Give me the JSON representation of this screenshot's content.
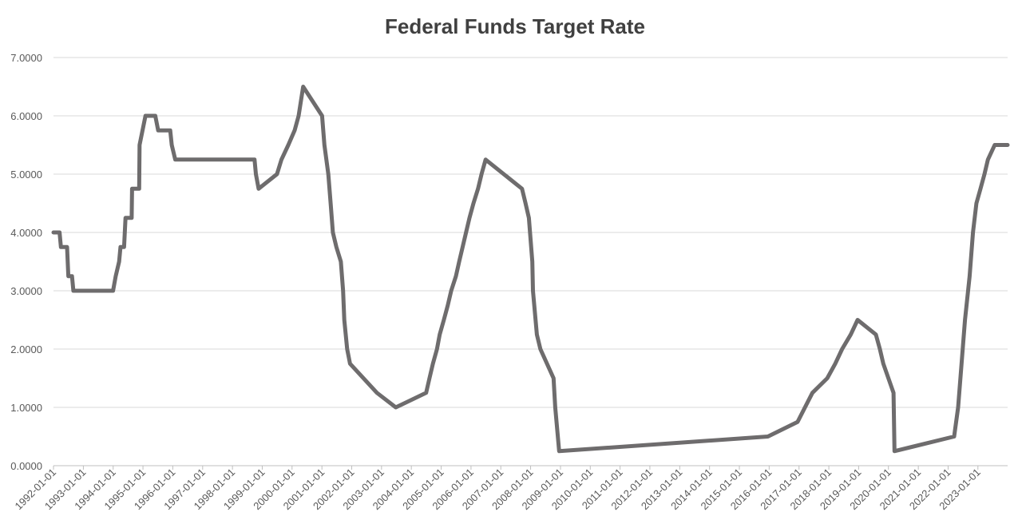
{
  "chart_data": {
    "type": "line",
    "title": "Federal Funds Target Rate",
    "xlabel": "",
    "ylabel": "",
    "ylim": [
      0,
      7
    ],
    "yticks": [
      "0.0000",
      "1.0000",
      "2.0000",
      "3.0000",
      "4.0000",
      "5.0000",
      "6.0000",
      "7.0000"
    ],
    "xticks": [
      "1992-01-01",
      "1993-01-01",
      "1994-01-01",
      "1995-01-01",
      "1996-01-01",
      "1997-01-01",
      "1998-01-01",
      "1999-01-01",
      "2000-01-01",
      "2001-01-01",
      "2002-01-01",
      "2003-01-01",
      "2004-01-01",
      "2005-01-01",
      "2006-01-01",
      "2007-01-01",
      "2008-01-01",
      "2009-01-01",
      "2010-01-01",
      "2011-01-01",
      "2012-01-01",
      "2013-01-01",
      "2014-01-01",
      "2015-01-01",
      "2016-01-01",
      "2017-01-01",
      "2018-01-01",
      "2019-01-01",
      "2020-01-01",
      "2021-01-01",
      "2022-01-01",
      "2023-01-01"
    ],
    "grid": true,
    "legend": "none",
    "series": [
      {
        "color": "#6e6c6d",
        "x": [
          "1992-01-01",
          "1992-03-15",
          "1992-04-01",
          "1992-06-15",
          "1992-07-01",
          "1992-08-15",
          "1992-09-01",
          "1993-12-31",
          "1994-02-01",
          "1994-03-15",
          "1994-04-01",
          "1994-05-15",
          "1994-06-01",
          "1994-08-15",
          "1994-08-20",
          "1994-11-15",
          "1994-11-20",
          "1995-02-01",
          "1995-06-01",
          "1995-07-06",
          "1995-12-01",
          "1995-12-19",
          "1996-01-31",
          "1998-09-29",
          "1998-10-15",
          "1998-11-17",
          "1999-06-30",
          "1999-08-24",
          "1999-11-16",
          "2000-02-02",
          "2000-03-21",
          "2000-05-16",
          "2001-01-03",
          "2001-01-31",
          "2001-03-20",
          "2001-04-18",
          "2001-05-15",
          "2001-06-27",
          "2001-08-21",
          "2001-09-17",
          "2001-10-02",
          "2001-11-06",
          "2001-12-11",
          "2002-11-06",
          "2003-06-25",
          "2004-06-30",
          "2004-08-10",
          "2004-09-21",
          "2004-11-10",
          "2004-12-14",
          "2005-02-02",
          "2005-03-22",
          "2005-05-03",
          "2005-06-30",
          "2005-08-09",
          "2005-09-20",
          "2005-11-01",
          "2005-12-13",
          "2006-01-31",
          "2006-03-28",
          "2006-05-10",
          "2006-06-29",
          "2007-09-18",
          "2007-10-31",
          "2007-12-11",
          "2008-01-22",
          "2008-01-30",
          "2008-03-18",
          "2008-04-30",
          "2008-10-08",
          "2008-10-29",
          "2008-12-16",
          "2015-12-16",
          "2016-12-14",
          "2017-03-15",
          "2017-06-14",
          "2017-12-13",
          "2018-03-21",
          "2018-06-13",
          "2018-09-26",
          "2018-12-19",
          "2019-07-31",
          "2019-09-18",
          "2019-10-30",
          "2020-03-03",
          "2020-03-15",
          "2022-03-16",
          "2022-05-04",
          "2022-06-15",
          "2022-07-27",
          "2022-09-21",
          "2022-11-02",
          "2022-12-14",
          "2023-02-01",
          "2023-03-22",
          "2023-05-03",
          "2023-07-26",
          "2023-12-31"
        ],
        "values": [
          4.0,
          4.0,
          3.75,
          3.75,
          3.25,
          3.25,
          3.0,
          3.0,
          3.25,
          3.5,
          3.75,
          3.75,
          4.25,
          4.25,
          4.75,
          4.75,
          5.5,
          6.0,
          6.0,
          5.75,
          5.75,
          5.5,
          5.25,
          5.25,
          5.0,
          4.75,
          5.0,
          5.25,
          5.5,
          5.75,
          6.0,
          6.5,
          6.0,
          5.5,
          5.0,
          4.5,
          4.0,
          3.75,
          3.5,
          3.0,
          2.5,
          2.0,
          1.75,
          1.25,
          1.0,
          1.25,
          1.5,
          1.75,
          2.0,
          2.25,
          2.5,
          2.75,
          3.0,
          3.25,
          3.5,
          3.75,
          4.0,
          4.25,
          4.5,
          4.75,
          5.0,
          5.25,
          4.75,
          4.5,
          4.25,
          3.5,
          3.0,
          2.25,
          2.0,
          1.5,
          1.0,
          0.25,
          0.5,
          0.75,
          1.0,
          1.25,
          1.5,
          1.75,
          2.0,
          2.25,
          2.5,
          2.25,
          2.0,
          1.75,
          1.25,
          0.25,
          0.5,
          1.0,
          1.75,
          2.5,
          3.25,
          4.0,
          4.5,
          4.75,
          5.0,
          5.25,
          5.5,
          5.5
        ]
      }
    ]
  }
}
